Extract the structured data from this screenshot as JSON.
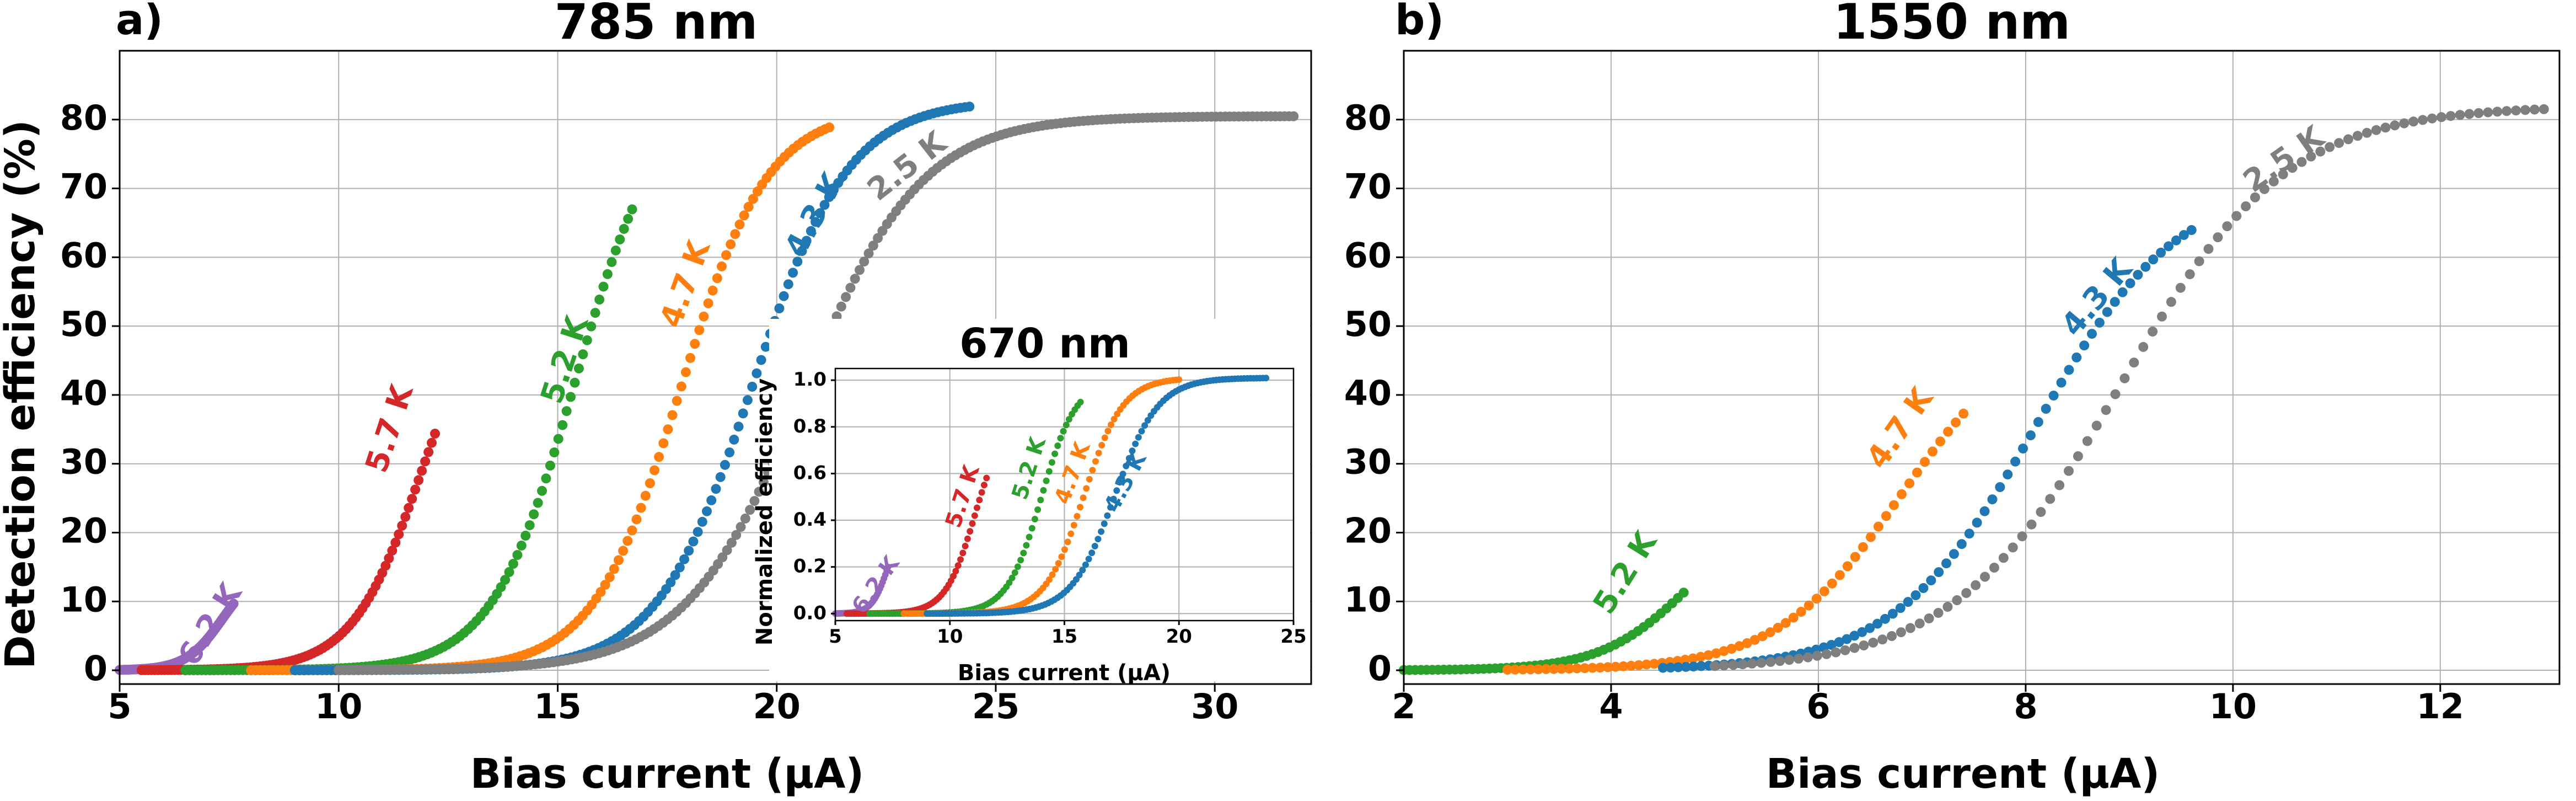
{
  "colors": {
    "2.5 K": "#7f7f7f",
    "4.3 K": "#1f77b4",
    "4.7 K": "#ff7f0e",
    "5.2 K": "#2ca02c",
    "5.7 K": "#d62728",
    "6.2 K": "#9467bd",
    "grid": "#b0b0b0"
  },
  "panel_labels": {
    "a": "a)",
    "b": "b)"
  },
  "chart_data": [
    {
      "id": "a",
      "type": "scatter",
      "title": "785 nm",
      "xlabel": "Bias current (μA)",
      "ylabel": "Detection efficiency (%)",
      "xlim": [
        5,
        32.2
      ],
      "ylim": [
        -2,
        90
      ],
      "xticks": [
        5,
        10,
        15,
        20,
        25,
        30
      ],
      "yticks": [
        0,
        10,
        20,
        30,
        40,
        50,
        60,
        70,
        80
      ],
      "grid": true,
      "series": [
        {
          "name": "6.2 K",
          "sig": {
            "x0": 7.35,
            "w": 0.42,
            "A": 15.0,
            "xmin": 5.0,
            "xmax": 7.6,
            "n": 70
          },
          "label": {
            "text": "6.2 K",
            "x": 7.1,
            "y": 6.5,
            "angle": -58
          }
        },
        {
          "name": "5.7 K",
          "sig": {
            "x0": 11.9,
            "w": 0.8,
            "A": 58.0,
            "xmin": 5.5,
            "xmax": 12.2,
            "n": 90
          },
          "label": {
            "text": "5.7 K",
            "x": 11.2,
            "y": 35,
            "angle": -72
          }
        },
        {
          "name": "5.2 K",
          "sig": {
            "x0": 15.4,
            "w": 0.95,
            "A": 84.0,
            "xmin": 6.5,
            "xmax": 16.7,
            "n": 110
          },
          "label": {
            "text": "5.2 K",
            "x": 15.2,
            "y": 45,
            "angle": -72
          }
        },
        {
          "name": "4.7 K",
          "sig": {
            "x0": 17.8,
            "w": 1.0,
            "A": 81.5,
            "xmin": 8.0,
            "xmax": 21.2,
            "n": 130
          },
          "label": {
            "text": "4.7 K",
            "x": 17.95,
            "y": 56,
            "angle": -70
          }
        },
        {
          "name": "4.3 K",
          "sig": {
            "x0": 19.45,
            "w": 1.1,
            "A": 82.8,
            "xmin": 9.0,
            "xmax": 24.4,
            "n": 150
          },
          "label": {
            "text": "4.3 K",
            "x": 20.9,
            "y": 66,
            "angle": -62
          }
        },
        {
          "name": "2.5 K",
          "sig": {
            "x0": 20.6,
            "w": 1.35,
            "A": 80.5,
            "xmin": 10.0,
            "xmax": 31.8,
            "n": 210
          },
          "label": {
            "text": "2.5 K",
            "x": 23.0,
            "y": 73,
            "angle": -38
          }
        }
      ]
    },
    {
      "id": "inset",
      "type": "scatter",
      "title": "670 nm",
      "xlabel": "Bias current (μA)",
      "ylabel": "Normalized efficiency",
      "xlim": [
        5,
        25
      ],
      "ylim": [
        -0.03,
        1.05
      ],
      "xticks": [
        5,
        10,
        15,
        20,
        25
      ],
      "yticks": [
        0.0,
        0.2,
        0.4,
        0.6,
        0.8,
        1.0
      ],
      "ytick_labels": [
        "0.0",
        "0.2",
        "0.4",
        "0.6",
        "0.8",
        "1.0"
      ],
      "grid": true,
      "series": [
        {
          "name": "6.2 K",
          "sig": {
            "x0": 7.3,
            "w": 0.35,
            "A": 0.4,
            "xmin": 5.0,
            "xmax": 7.3,
            "n": 40
          },
          "label": {
            "text": "6.2 K",
            "x": 6.8,
            "y": 0.12,
            "angle": -55
          }
        },
        {
          "name": "5.7 K",
          "sig": {
            "x0": 11.1,
            "w": 0.65,
            "A": 0.85,
            "xmin": 5.5,
            "xmax": 11.6,
            "n": 60
          },
          "label": {
            "text": "5.7 K",
            "x": 10.6,
            "y": 0.5,
            "angle": -72
          }
        },
        {
          "name": "5.2 K",
          "sig": {
            "x0": 14.0,
            "w": 0.75,
            "A": 1.0,
            "xmin": 6.5,
            "xmax": 15.7,
            "n": 75
          },
          "label": {
            "text": "5.2 K",
            "x": 13.5,
            "y": 0.62,
            "angle": -72
          }
        },
        {
          "name": "4.7 K",
          "sig": {
            "x0": 15.85,
            "w": 0.85,
            "A": 1.01,
            "xmin": 8.0,
            "xmax": 20.0,
            "n": 90
          },
          "label": {
            "text": "4.7 K",
            "x": 15.4,
            "y": 0.6,
            "angle": -70
          }
        },
        {
          "name": "4.3 K",
          "sig": {
            "x0": 17.2,
            "w": 0.95,
            "A": 1.01,
            "xmin": 9.0,
            "xmax": 23.8,
            "n": 110
          },
          "label": {
            "text": "4.3 K",
            "x": 17.7,
            "y": 0.56,
            "angle": -62
          }
        }
      ]
    },
    {
      "id": "b",
      "type": "scatter",
      "title": "1550 nm",
      "xlabel": "Bias current (μA)",
      "ylabel": "",
      "xlim": [
        2,
        13.15
      ],
      "ylim": [
        -2,
        90
      ],
      "xticks": [
        2,
        4,
        6,
        8,
        10,
        12
      ],
      "yticks": [
        0,
        10,
        20,
        30,
        40,
        50,
        60,
        70,
        80
      ],
      "grid": true,
      "series": [
        {
          "name": "5.2 K",
          "sig": {
            "x0": 4.75,
            "w": 0.42,
            "A": 24.0,
            "xmin": 2.0,
            "xmax": 4.7,
            "n": 50
          },
          "label": {
            "text": "5.2 K",
            "x": 4.15,
            "y": 14,
            "angle": -58
          }
        },
        {
          "name": "4.7 K",
          "sig": {
            "x0": 6.8,
            "w": 0.6,
            "A": 51.0,
            "xmin": 3.0,
            "xmax": 7.4,
            "n": 60
          },
          "label": {
            "text": "4.7 K",
            "x": 6.8,
            "y": 35,
            "angle": -55
          }
        },
        {
          "name": "4.3 K",
          "sig": {
            "x0": 8.1,
            "w": 0.68,
            "A": 71.0,
            "xmin": 4.5,
            "xmax": 9.6,
            "n": 70
          },
          "label": {
            "text": "4.3 K",
            "x": 8.7,
            "y": 54,
            "angle": -50
          }
        },
        {
          "name": "2.5 K",
          "sig": {
            "x0": 8.9,
            "w": 0.8,
            "A": 82.0,
            "xmin": 5.0,
            "xmax": 13.0,
            "n": 90
          },
          "label": {
            "text": "2.5 K",
            "x": 10.5,
            "y": 74,
            "angle": -35
          }
        }
      ]
    }
  ]
}
